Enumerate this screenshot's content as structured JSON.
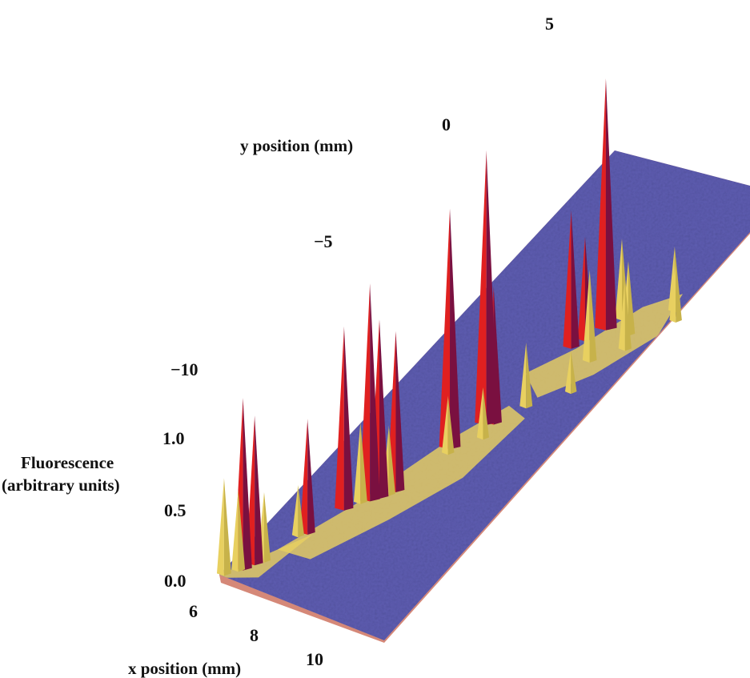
{
  "chart_data": {
    "type": "surface3d",
    "title": "",
    "xlabel": "x position (mm)",
    "ylabel": "y position (mm)",
    "zlabel_lines": [
      "Fluorescence",
      "(arbitrary units)"
    ],
    "x_ticks": [
      "6",
      "8",
      "10"
    ],
    "y_ticks": [
      "5",
      "0",
      "−5",
      "−10"
    ],
    "z_ticks": [
      "1.0",
      "0.5",
      "0.0"
    ],
    "xlim": [
      6,
      10
    ],
    "ylim": [
      -12,
      6
    ],
    "zlim": [
      0,
      1.2
    ],
    "peaks": [
      {
        "x": 6.1,
        "y": -11.9,
        "z": 0.42
      },
      {
        "x": 6.5,
        "y": -11.5,
        "z": 0.75
      },
      {
        "x": 6.7,
        "y": -11.2,
        "z": 0.65
      },
      {
        "x": 6.4,
        "y": -11.6,
        "z": 0.35
      },
      {
        "x": 6.9,
        "y": -11.0,
        "z": 0.3
      },
      {
        "x": 7.4,
        "y": -9.6,
        "z": 0.5
      },
      {
        "x": 7.2,
        "y": -9.8,
        "z": 0.22
      },
      {
        "x": 7.8,
        "y": -8.4,
        "z": 0.8
      },
      {
        "x": 8.3,
        "y": -7.8,
        "z": 0.95
      },
      {
        "x": 8.5,
        "y": -7.6,
        "z": 0.78
      },
      {
        "x": 8.8,
        "y": -7.2,
        "z": 0.7
      },
      {
        "x": 8.1,
        "y": -8.0,
        "z": 0.35
      },
      {
        "x": 8.7,
        "y": -7.4,
        "z": 0.3
      },
      {
        "x": 9.2,
        "y": -5.2,
        "z": 1.05
      },
      {
        "x": 9.6,
        "y": -4.0,
        "z": 1.2
      },
      {
        "x": 9.8,
        "y": -3.9,
        "z": 0.6
      },
      {
        "x": 9.3,
        "y": -5.4,
        "z": 0.25
      },
      {
        "x": 9.9,
        "y": -4.5,
        "z": 0.22
      },
      {
        "x": 10.3,
        "y": -3.0,
        "z": 0.28
      },
      {
        "x": 10.0,
        "y": -0.6,
        "z": 0.6
      },
      {
        "x": 10.5,
        "y": 0.4,
        "z": 1.1
      },
      {
        "x": 10.2,
        "y": -0.2,
        "z": 0.45
      },
      {
        "x": 10.7,
        "y": 0.9,
        "z": 0.35
      },
      {
        "x": 10.9,
        "y": -0.8,
        "z": 0.4
      },
      {
        "x": 11.3,
        "y": 0.5,
        "z": 0.32
      },
      {
        "x": 11.6,
        "y": 0.0,
        "z": 0.3
      },
      {
        "x": 12.0,
        "y": 1.8,
        "z": 0.28
      },
      {
        "x": 12.3,
        "y": 1.5,
        "z": 0.25
      },
      {
        "x": 11.2,
        "y": -2.0,
        "z": 0.18
      }
    ],
    "colorscale": [
      "#5c5ab0",
      "#e8d060",
      "#e02020",
      "#7a1040"
    ]
  }
}
